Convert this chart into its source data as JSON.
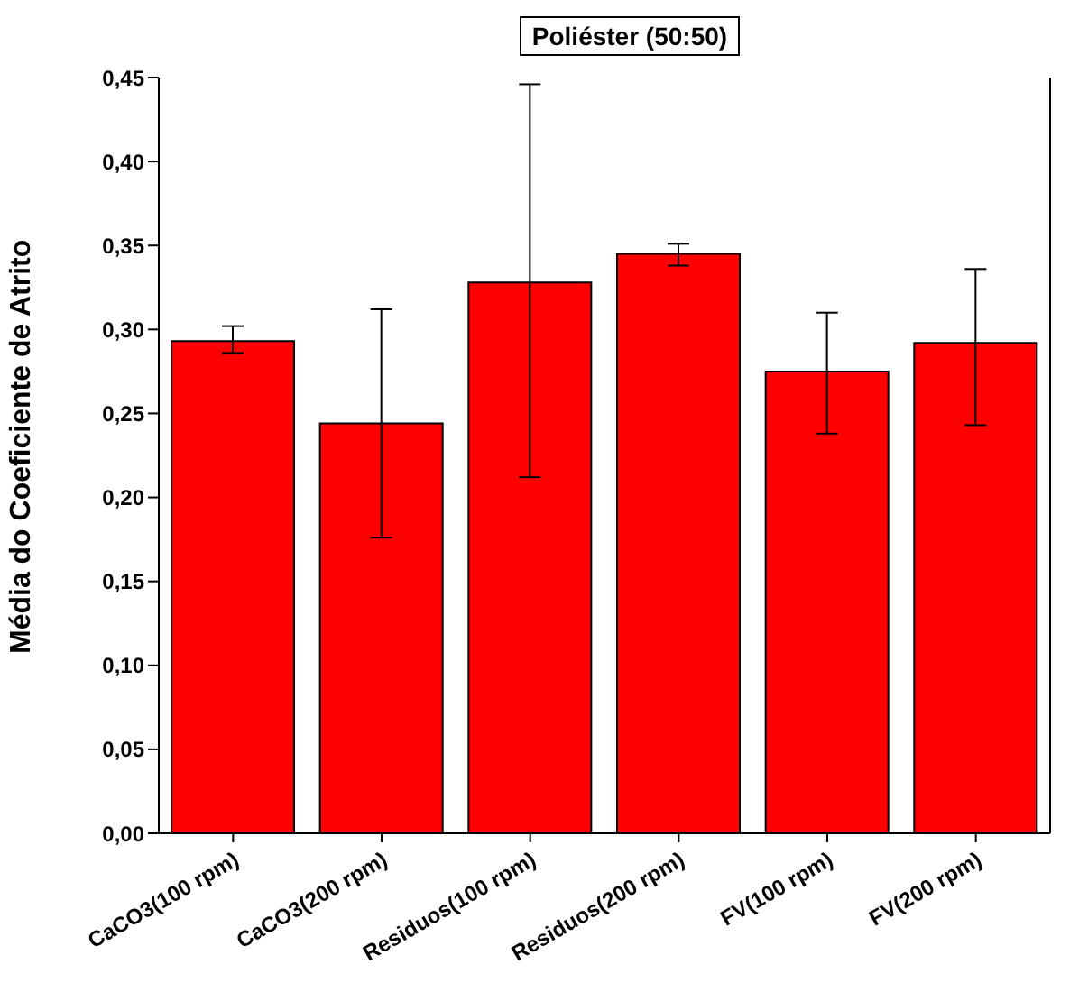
{
  "chart_data": {
    "type": "bar",
    "title": "Poliéster (50:50)",
    "ylabel": "Média do Coeficiente de Atrito",
    "categories": [
      "CaCO3(100 rpm)",
      "CaCO3(200 rpm)",
      "Residuos(100 rpm)",
      "Residuos(200 rpm)",
      "FV(100 rpm)",
      "FV(200 rpm)"
    ],
    "values": [
      0.293,
      0.244,
      0.328,
      0.345,
      0.275,
      0.292
    ],
    "errors": [
      [
        0.286,
        0.302
      ],
      [
        0.176,
        0.312
      ],
      [
        0.212,
        0.446
      ],
      [
        0.338,
        0.351
      ],
      [
        0.238,
        0.31
      ],
      [
        0.243,
        0.336
      ]
    ],
    "color": "#ff0000",
    "ylim": [
      0,
      0.45
    ],
    "yticks": [
      {
        "value": 0,
        "label": "0,00"
      },
      {
        "value": 0.05,
        "label": "0,05"
      },
      {
        "value": 0.1,
        "label": "0,10"
      },
      {
        "value": 0.15,
        "label": "0,15"
      },
      {
        "value": 0.2,
        "label": "0,20"
      },
      {
        "value": 0.25,
        "label": "0,25"
      },
      {
        "value": 0.3,
        "label": "0,30"
      },
      {
        "value": 0.35,
        "label": "0,35"
      },
      {
        "value": 0.4,
        "label": "0,40"
      },
      {
        "value": 0.45,
        "label": "0,45"
      }
    ],
    "grid": false,
    "legend": false
  }
}
